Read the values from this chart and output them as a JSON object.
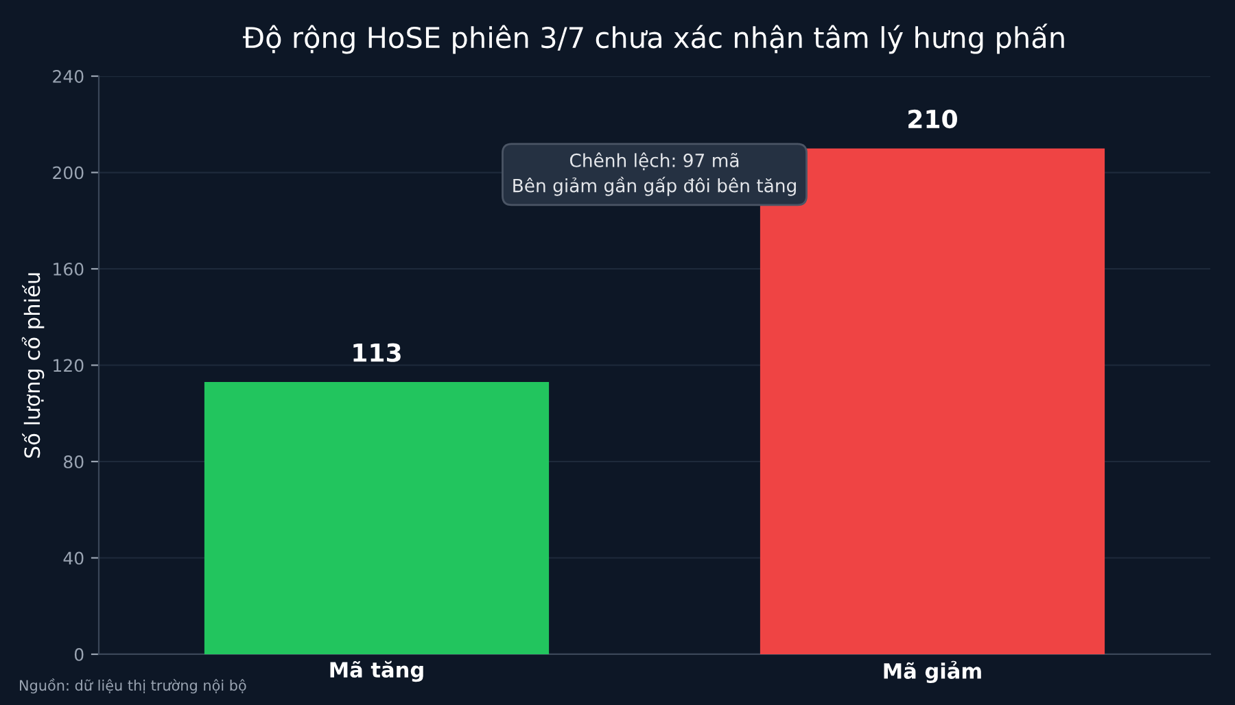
{
  "chart_data": {
    "type": "bar",
    "title": "Độ rộng HoSE phiên 3/7 chưa xác nhận tâm lý hưng phấn",
    "ylabel": "Số lượng cổ phiếu",
    "categories": [
      "Mã tăng",
      "Mã giảm"
    ],
    "values": [
      113,
      210
    ],
    "colors": [
      "#22c55e",
      "#ef4444"
    ],
    "ylim": [
      0,
      240
    ],
    "yticks": [
      0,
      40,
      80,
      120,
      160,
      200,
      240
    ],
    "grid": "y",
    "data_labels": true,
    "legend": false,
    "annotations": [
      "Chênh lệch: 97 mã\nBên giảm gần gấp đôi bên tăng",
      "Nguồn: dữ liệu thị trường nội bộ"
    ]
  }
}
